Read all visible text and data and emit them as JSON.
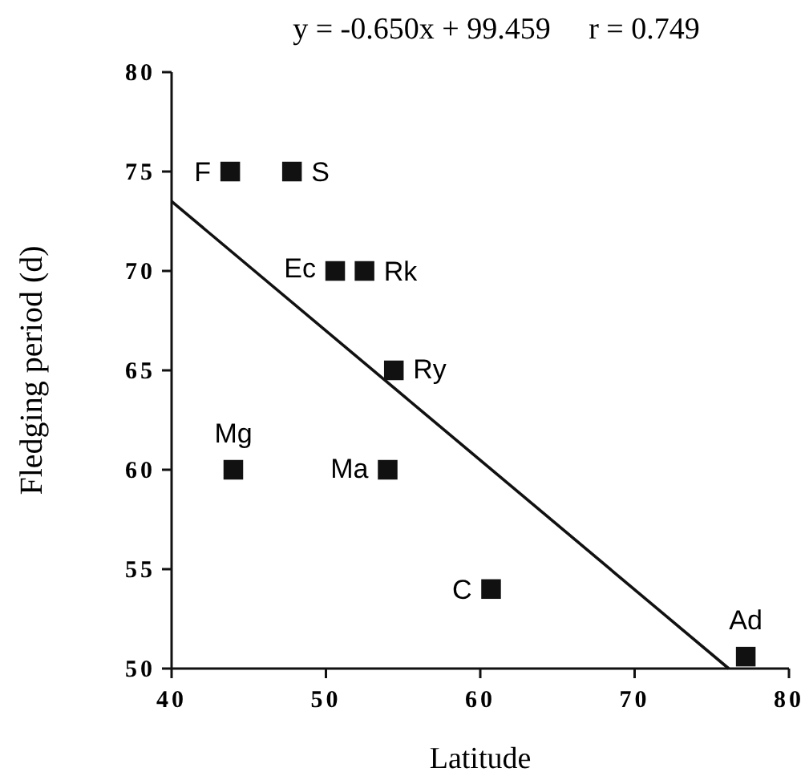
{
  "chart_data": {
    "type": "scatter",
    "title": "y = -0.650x + 99.459     r = 0.749",
    "xlabel": "Latitude",
    "ylabel": "Fledging period (d)",
    "xlim": [
      40,
      80
    ],
    "xticks": [
      40,
      50,
      60,
      70,
      80
    ],
    "ylim": [
      50,
      80
    ],
    "yticks": [
      50,
      55,
      60,
      65,
      70,
      75,
      80
    ],
    "grid": false,
    "series": [
      {
        "marker": "square",
        "color": "#111111",
        "x": [
          43.8,
          47.8,
          50.6,
          52.5,
          54.4,
          44.0,
          54.0,
          60.7,
          77.2
        ],
        "values": [
          75,
          75,
          70,
          70,
          65,
          60,
          60,
          54,
          50.6
        ]
      },
      {
        "type": "line",
        "color": "#111111",
        "x": [
          40,
          76.1
        ],
        "values": [
          73.5,
          50
        ],
        "line_style": "solid"
      }
    ],
    "annotations": [
      {
        "text": "F",
        "x": 43.8,
        "y": 75
      },
      {
        "text": "S",
        "x": 47.8,
        "y": 75
      },
      {
        "text": "Ec",
        "x": 50.6,
        "y": 70
      },
      {
        "text": "Rk",
        "x": 52.5,
        "y": 70
      },
      {
        "text": "Ry",
        "x": 54.4,
        "y": 65
      },
      {
        "text": "Mg",
        "x": 44.0,
        "y": 60
      },
      {
        "text": "Ma",
        "x": 54.0,
        "y": 60
      },
      {
        "text": "C",
        "x": 60.7,
        "y": 54
      },
      {
        "text": "Ad",
        "x": 77.2,
        "y": 50.6
      }
    ]
  }
}
